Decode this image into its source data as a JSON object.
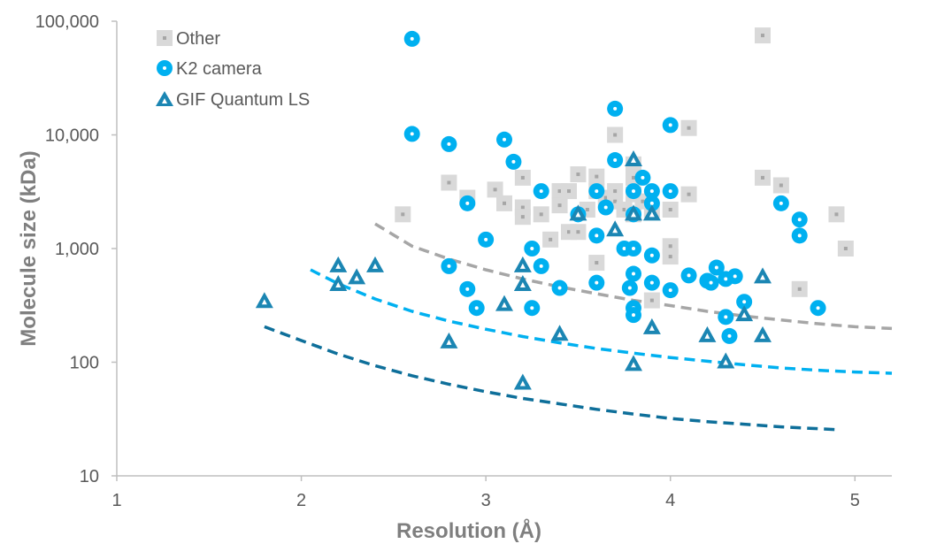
{
  "chart_data": {
    "type": "scatter",
    "xlabel": "Resolution (Å)",
    "ylabel": "Molecule size (kDa)",
    "xlim": [
      1,
      5.2
    ],
    "ylim": [
      10,
      100000
    ],
    "y_scale": "log",
    "x_ticks": [
      1,
      2,
      3,
      4,
      5
    ],
    "x_tick_labels": [
      "1",
      "2",
      "3",
      "4",
      "5"
    ],
    "y_ticks": [
      10,
      100,
      1000,
      10000,
      100000
    ],
    "y_tick_labels": [
      "10",
      "100",
      "1,000",
      "10,000",
      "100,000"
    ],
    "grid": false,
    "legend_position": "top-left",
    "series": [
      {
        "name": "Other",
        "marker": "square",
        "color": "#d9d9d9",
        "points": [
          [
            2.55,
            2000
          ],
          [
            2.8,
            3800
          ],
          [
            2.9,
            2800
          ],
          [
            3.05,
            3300
          ],
          [
            3.1,
            2500
          ],
          [
            3.2,
            4200
          ],
          [
            3.2,
            2300
          ],
          [
            3.2,
            1900
          ],
          [
            3.3,
            2000
          ],
          [
            3.35,
            1200
          ],
          [
            3.4,
            3200
          ],
          [
            3.4,
            2400
          ],
          [
            3.45,
            3200
          ],
          [
            3.45,
            1400
          ],
          [
            3.5,
            4500
          ],
          [
            3.5,
            1400
          ],
          [
            3.55,
            2200
          ],
          [
            3.6,
            4300
          ],
          [
            3.6,
            3200
          ],
          [
            3.6,
            750
          ],
          [
            3.65,
            2800
          ],
          [
            3.7,
            10000
          ],
          [
            3.7,
            3200
          ],
          [
            3.7,
            2600
          ],
          [
            3.75,
            2200
          ],
          [
            3.8,
            5500
          ],
          [
            3.8,
            4200
          ],
          [
            3.8,
            3000
          ],
          [
            3.8,
            2000
          ],
          [
            3.85,
            2600
          ],
          [
            3.9,
            2200
          ],
          [
            3.9,
            350
          ],
          [
            4.0,
            2200
          ],
          [
            4.0,
            1050
          ],
          [
            4.0,
            850
          ],
          [
            4.1,
            11500
          ],
          [
            4.1,
            3000
          ],
          [
            4.5,
            75000
          ],
          [
            4.5,
            4200
          ],
          [
            4.6,
            3600
          ],
          [
            4.7,
            440
          ],
          [
            4.9,
            2000
          ],
          [
            4.95,
            1000
          ]
        ]
      },
      {
        "name": "K2 camera",
        "marker": "circle",
        "color": "#00b0f0",
        "points": [
          [
            2.6,
            70000
          ],
          [
            2.6,
            10200
          ],
          [
            2.8,
            8300
          ],
          [
            2.8,
            700
          ],
          [
            2.9,
            2500
          ],
          [
            2.9,
            440
          ],
          [
            2.95,
            300
          ],
          [
            3.0,
            1200
          ],
          [
            3.1,
            9100
          ],
          [
            3.15,
            5800
          ],
          [
            3.25,
            1000
          ],
          [
            3.25,
            300
          ],
          [
            3.3,
            3200
          ],
          [
            3.3,
            700
          ],
          [
            3.4,
            450
          ],
          [
            3.5,
            2000
          ],
          [
            3.6,
            3200
          ],
          [
            3.6,
            1300
          ],
          [
            3.6,
            500
          ],
          [
            3.65,
            2300
          ],
          [
            3.7,
            17000
          ],
          [
            3.7,
            6000
          ],
          [
            3.75,
            1000
          ],
          [
            3.78,
            450
          ],
          [
            3.8,
            3200
          ],
          [
            3.8,
            2000
          ],
          [
            3.8,
            1000
          ],
          [
            3.8,
            600
          ],
          [
            3.8,
            300
          ],
          [
            3.8,
            260
          ],
          [
            3.85,
            4200
          ],
          [
            3.9,
            3200
          ],
          [
            3.9,
            2500
          ],
          [
            3.9,
            870
          ],
          [
            3.9,
            500
          ],
          [
            4.0,
            12200
          ],
          [
            4.0,
            3200
          ],
          [
            4.0,
            430
          ],
          [
            4.1,
            580
          ],
          [
            4.2,
            520
          ],
          [
            4.22,
            500
          ],
          [
            4.25,
            680
          ],
          [
            4.3,
            540
          ],
          [
            4.3,
            250
          ],
          [
            4.32,
            170
          ],
          [
            4.35,
            570
          ],
          [
            4.4,
            340
          ],
          [
            4.6,
            2500
          ],
          [
            4.7,
            1800
          ],
          [
            4.7,
            1300
          ],
          [
            4.8,
            300
          ]
        ]
      },
      {
        "name": "GIF Quantum LS",
        "marker": "triangle",
        "color": "#1b86b3",
        "points": [
          [
            1.8,
            340
          ],
          [
            2.2,
            700
          ],
          [
            2.2,
            480
          ],
          [
            2.3,
            550
          ],
          [
            2.4,
            700
          ],
          [
            2.8,
            150
          ],
          [
            3.1,
            320
          ],
          [
            3.2,
            700
          ],
          [
            3.2,
            480
          ],
          [
            3.2,
            65
          ],
          [
            3.4,
            175
          ],
          [
            3.5,
            2000
          ],
          [
            3.7,
            1450
          ],
          [
            3.8,
            6000
          ],
          [
            3.8,
            2000
          ],
          [
            3.8,
            95
          ],
          [
            3.9,
            2000
          ],
          [
            3.9,
            200
          ],
          [
            4.2,
            170
          ],
          [
            4.3,
            100
          ],
          [
            4.4,
            260
          ],
          [
            4.5,
            560
          ],
          [
            4.5,
            170
          ]
        ]
      }
    ],
    "trend_lines": [
      {
        "color": "#a6a6a6",
        "style": "dashed",
        "points": [
          [
            2.4,
            1650
          ],
          [
            2.6,
            1050
          ],
          [
            2.8,
            810
          ],
          [
            3.0,
            650
          ],
          [
            3.2,
            540
          ],
          [
            3.4,
            460
          ],
          [
            3.6,
            400
          ],
          [
            3.8,
            350
          ],
          [
            4.0,
            315
          ],
          [
            4.2,
            280
          ],
          [
            4.4,
            255
          ],
          [
            4.6,
            235
          ],
          [
            4.8,
            218
          ],
          [
            5.0,
            205
          ],
          [
            5.2,
            198
          ]
        ]
      },
      {
        "color": "#00b0f0",
        "style": "dashed",
        "points": [
          [
            2.05,
            650
          ],
          [
            2.2,
            490
          ],
          [
            2.4,
            360
          ],
          [
            2.6,
            280
          ],
          [
            2.8,
            230
          ],
          [
            3.0,
            195
          ],
          [
            3.2,
            168
          ],
          [
            3.4,
            148
          ],
          [
            3.6,
            132
          ],
          [
            3.8,
            120
          ],
          [
            4.0,
            110
          ],
          [
            4.2,
            102
          ],
          [
            4.4,
            95
          ],
          [
            4.6,
            89
          ],
          [
            4.8,
            85
          ],
          [
            5.0,
            82
          ],
          [
            5.2,
            80
          ]
        ]
      },
      {
        "color": "#0e6f9a",
        "style": "dashed",
        "points": [
          [
            1.8,
            205
          ],
          [
            2.0,
            155
          ],
          [
            2.2,
            118
          ],
          [
            2.4,
            93
          ],
          [
            2.6,
            76
          ],
          [
            2.8,
            64
          ],
          [
            3.0,
            55
          ],
          [
            3.2,
            48
          ],
          [
            3.4,
            43
          ],
          [
            3.6,
            38.5
          ],
          [
            3.8,
            35
          ],
          [
            4.0,
            32
          ],
          [
            4.2,
            30
          ],
          [
            4.4,
            28.5
          ],
          [
            4.6,
            27
          ],
          [
            4.8,
            26
          ],
          [
            4.9,
            25.5
          ]
        ]
      }
    ]
  }
}
